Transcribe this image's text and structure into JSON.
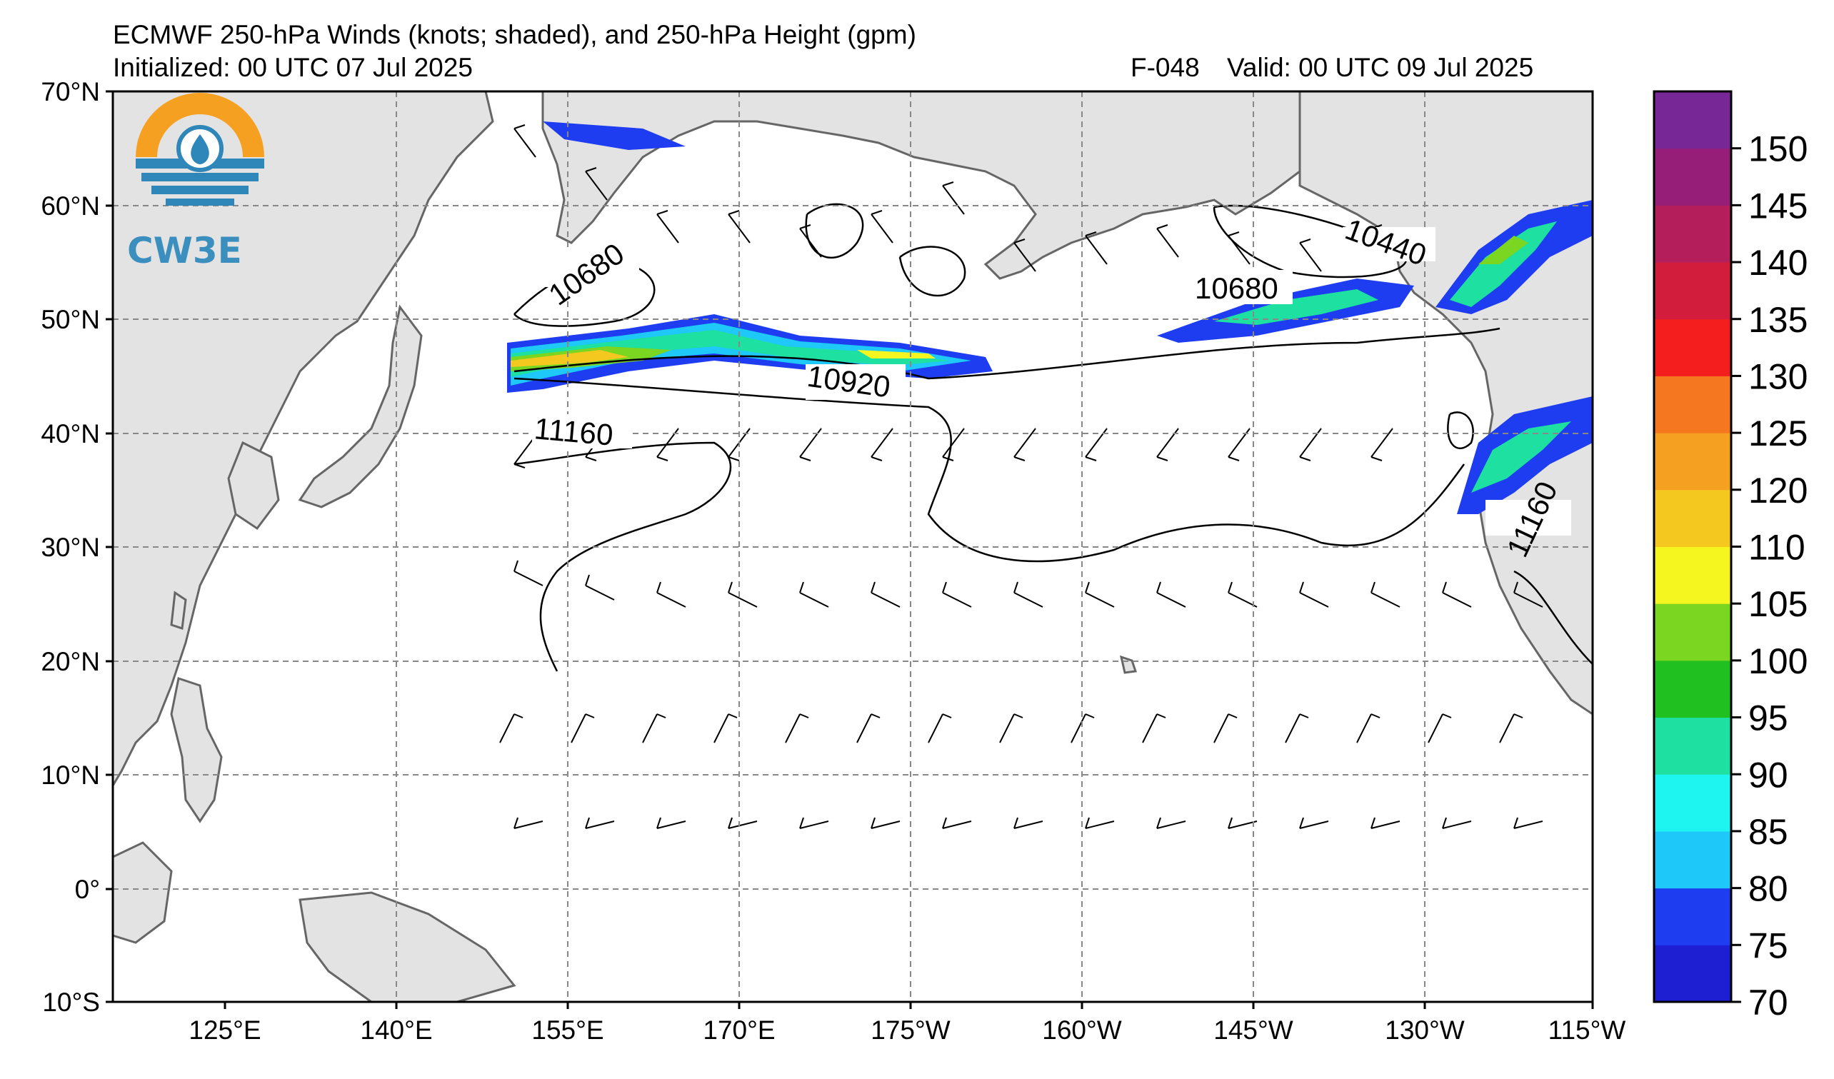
{
  "header": {
    "title": "ECMWF 250-hPa Winds (knots; shaded), and 250-hPa Height (gpm)",
    "initialized": "Initialized: 00 UTC 07 Jul 2025",
    "forecast_hour": "F-048",
    "valid": "Valid: 00 UTC 09 Jul 2025"
  },
  "logo": {
    "text": "CW3E",
    "icon": "water-drop-lightning-icon",
    "color_orange": "#f5a020",
    "color_blue": "#2f86b8"
  },
  "map": {
    "lat_labels": [
      "70°N",
      "60°N",
      "50°N",
      "40°N",
      "30°N",
      "20°N",
      "10°N",
      "0°",
      "10°S"
    ],
    "lon_labels": [
      "125°E",
      "140°E",
      "155°E",
      "170°E",
      "175°W",
      "160°W",
      "145°W",
      "130°W",
      "115°W"
    ],
    "contour_labels": [
      "10680",
      "10680",
      "10920",
      "11160",
      "10440",
      "11160"
    ],
    "land_color": "#e3e3e3",
    "coast_color": "#666666"
  },
  "colorbar": {
    "ticks": [
      "70",
      "75",
      "80",
      "85",
      "90",
      "95",
      "100",
      "105",
      "110",
      "120",
      "125",
      "130",
      "135",
      "140",
      "145",
      "150"
    ],
    "colors": [
      "#1e1ed2",
      "#1e3cf0",
      "#1ec8f8",
      "#1ef5f0",
      "#1ee0a0",
      "#20c020",
      "#7ad620",
      "#f5f520",
      "#f5c820",
      "#f5a020",
      "#f57820",
      "#f51e1e",
      "#d21e3c",
      "#b41e5a",
      "#961e78",
      "#782896"
    ]
  }
}
